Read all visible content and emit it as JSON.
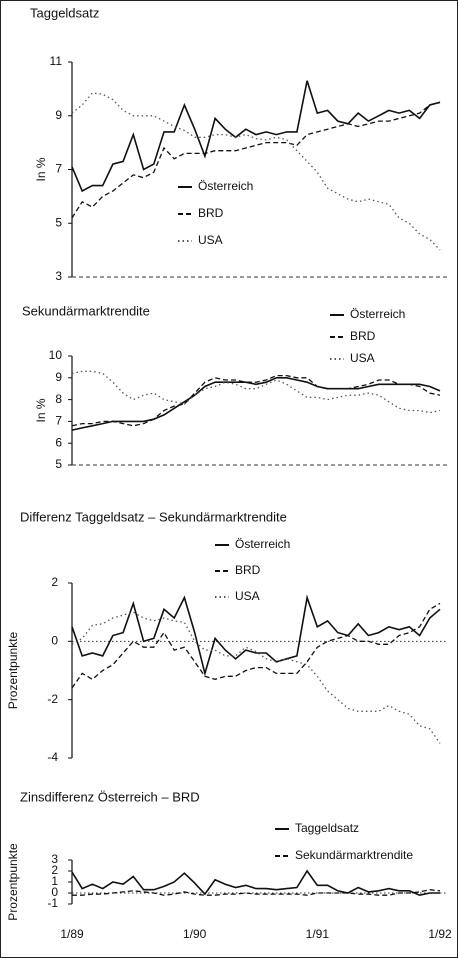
{
  "chart_data": [
    {
      "type": "line",
      "title": "Taggeldsatz",
      "ylabel": "In %",
      "ylim": [
        3,
        11
      ],
      "yticks": [
        3,
        5,
        7,
        9,
        11
      ],
      "series": [
        {
          "name": "Österreich",
          "color": "#111111",
          "style": "solid",
          "values": [
            7.1,
            6.2,
            6.4,
            6.4,
            7.2,
            7.3,
            8.3,
            7.0,
            7.2,
            8.4,
            8.4,
            9.4,
            8.5,
            7.5,
            8.9,
            8.5,
            8.2,
            8.5,
            8.3,
            8.4,
            8.3,
            8.4,
            8.4,
            10.3,
            9.1,
            9.2,
            8.8,
            8.7,
            9.1,
            8.8,
            9.0,
            9.2,
            9.1,
            9.2,
            8.9,
            9.4,
            9.5
          ]
        },
        {
          "name": "BRD",
          "color": "#111111",
          "style": "dashed",
          "values": [
            5.2,
            5.8,
            5.6,
            6.0,
            6.2,
            6.5,
            6.8,
            6.7,
            6.9,
            7.8,
            7.4,
            7.6,
            7.6,
            7.6,
            7.7,
            7.7,
            7.7,
            7.8,
            7.9,
            8.0,
            8.0,
            8.0,
            7.9,
            8.3,
            8.4,
            8.5,
            8.6,
            8.7,
            8.6,
            8.7,
            8.8,
            8.8,
            8.9,
            9.0,
            9.1,
            9.4,
            9.5
          ]
        },
        {
          "name": "USA",
          "color": "#555555",
          "style": "dotted",
          "values": [
            9.1,
            9.4,
            9.85,
            9.8,
            9.6,
            9.2,
            9.0,
            9.0,
            9.0,
            8.8,
            8.6,
            8.45,
            8.2,
            8.2,
            8.3,
            8.3,
            8.2,
            8.3,
            8.15,
            8.1,
            8.2,
            8.1,
            7.7,
            7.3,
            6.9,
            6.3,
            6.1,
            5.9,
            5.8,
            5.9,
            5.8,
            5.7,
            5.2,
            5.0,
            4.6,
            4.4,
            4.0
          ]
        }
      ]
    },
    {
      "type": "line",
      "title": "Sekundärmarktrendite",
      "ylabel": "In %",
      "ylim": [
        5,
        10
      ],
      "yticks": [
        5,
        6,
        7,
        8,
        9,
        10
      ],
      "series": [
        {
          "name": "Österreich",
          "color": "#111111",
          "style": "solid",
          "values": [
            6.6,
            6.7,
            6.8,
            6.9,
            7.0,
            7.0,
            7.0,
            7.0,
            7.1,
            7.3,
            7.6,
            7.9,
            8.2,
            8.6,
            8.8,
            8.8,
            8.8,
            8.8,
            8.7,
            8.8,
            9.0,
            9.0,
            8.9,
            8.8,
            8.6,
            8.5,
            8.5,
            8.5,
            8.5,
            8.6,
            8.7,
            8.7,
            8.7,
            8.7,
            8.7,
            8.6,
            8.4
          ]
        },
        {
          "name": "BRD",
          "color": "#111111",
          "style": "dashed",
          "values": [
            6.8,
            6.9,
            6.9,
            7.0,
            7.0,
            6.9,
            6.8,
            6.9,
            7.1,
            7.5,
            7.7,
            7.8,
            8.3,
            8.8,
            9.0,
            8.9,
            8.9,
            8.8,
            8.8,
            8.9,
            9.1,
            9.1,
            9.0,
            9.0,
            8.6,
            8.5,
            8.5,
            8.5,
            8.6,
            8.7,
            8.9,
            8.9,
            8.7,
            8.7,
            8.6,
            8.3,
            8.2
          ]
        },
        {
          "name": "USA",
          "color": "#555555",
          "style": "dotted",
          "values": [
            9.2,
            9.3,
            9.3,
            9.2,
            8.8,
            8.3,
            8.0,
            8.2,
            8.3,
            8.0,
            7.9,
            7.8,
            8.2,
            8.5,
            8.6,
            8.8,
            8.7,
            8.5,
            8.5,
            8.7,
            8.9,
            8.7,
            8.4,
            8.1,
            8.1,
            8.0,
            8.1,
            8.2,
            8.2,
            8.3,
            8.2,
            7.9,
            7.6,
            7.5,
            7.5,
            7.4,
            7.5
          ]
        }
      ]
    },
    {
      "type": "line",
      "title": "Differenz Taggeldsatz – Sekundärmarktrendite",
      "ylabel": "Prozentpunkte",
      "ylim": [
        -4,
        2
      ],
      "yticks": [
        -4,
        -2,
        0,
        2
      ],
      "series": [
        {
          "name": "Österreich",
          "color": "#111111",
          "style": "solid",
          "values": [
            0.5,
            -0.5,
            -0.4,
            -0.5,
            0.2,
            0.3,
            1.3,
            0.0,
            0.1,
            1.1,
            0.8,
            1.5,
            0.3,
            -1.1,
            0.1,
            -0.3,
            -0.6,
            -0.3,
            -0.4,
            -0.4,
            -0.7,
            -0.6,
            -0.5,
            1.5,
            0.5,
            0.7,
            0.3,
            0.2,
            0.6,
            0.2,
            0.3,
            0.5,
            0.4,
            0.5,
            0.2,
            0.8,
            1.1
          ]
        },
        {
          "name": "BRD",
          "color": "#111111",
          "style": "dashed",
          "values": [
            -1.6,
            -1.1,
            -1.3,
            -1.0,
            -0.8,
            -0.4,
            0.0,
            -0.2,
            -0.2,
            0.3,
            -0.3,
            -0.2,
            -0.7,
            -1.2,
            -1.3,
            -1.2,
            -1.2,
            -1.0,
            -0.9,
            -0.9,
            -1.1,
            -1.1,
            -1.1,
            -0.7,
            -0.2,
            0.0,
            0.1,
            0.2,
            0.0,
            0.0,
            -0.1,
            -0.1,
            0.2,
            0.3,
            0.5,
            1.1,
            1.3
          ]
        },
        {
          "name": "USA",
          "color": "#555555",
          "style": "dotted",
          "values": [
            -0.1,
            0.1,
            0.55,
            0.6,
            0.8,
            0.9,
            1.0,
            0.8,
            0.7,
            0.8,
            0.7,
            0.65,
            0.0,
            -0.3,
            -0.3,
            -0.5,
            -0.5,
            -0.2,
            -0.35,
            -0.6,
            -0.7,
            -0.6,
            -0.7,
            -0.8,
            -1.2,
            -1.7,
            -2.0,
            -2.3,
            -2.4,
            -2.4,
            -2.4,
            -2.2,
            -2.4,
            -2.5,
            -2.9,
            -3.0,
            -3.5
          ]
        }
      ]
    },
    {
      "type": "line",
      "title": "Zinsdifferenz Österreich – BRD",
      "ylabel": "Prozentpunkte",
      "ylim": [
        -1,
        3
      ],
      "yticks": [
        -1,
        0,
        1,
        2,
        3
      ],
      "categories": [
        "1/89",
        null,
        null,
        null,
        null,
        null,
        null,
        null,
        null,
        null,
        null,
        null,
        "1/90",
        null,
        null,
        null,
        null,
        null,
        null,
        null,
        null,
        null,
        null,
        null,
        "1/91",
        null,
        null,
        null,
        null,
        null,
        null,
        null,
        null,
        null,
        null,
        null,
        "1/92"
      ],
      "series": [
        {
          "name": "Taggeldsatz",
          "color": "#111111",
          "style": "solid",
          "values": [
            1.9,
            0.4,
            0.8,
            0.4,
            1.0,
            0.8,
            1.5,
            0.3,
            0.3,
            0.6,
            1.0,
            1.8,
            0.9,
            -0.1,
            1.2,
            0.8,
            0.5,
            0.7,
            0.4,
            0.4,
            0.3,
            0.4,
            0.5,
            2.0,
            0.7,
            0.7,
            0.2,
            0.0,
            0.5,
            0.1,
            0.2,
            0.4,
            0.2,
            0.2,
            -0.2,
            0.0,
            0.0
          ]
        },
        {
          "name": "Sekundärmarktrendite",
          "color": "#111111",
          "style": "dashed",
          "values": [
            -0.2,
            -0.2,
            -0.1,
            -0.1,
            0.0,
            0.1,
            0.2,
            0.1,
            0.0,
            -0.2,
            -0.1,
            0.1,
            -0.1,
            -0.2,
            -0.2,
            -0.1,
            -0.1,
            0.0,
            -0.1,
            -0.1,
            -0.1,
            -0.1,
            -0.1,
            -0.2,
            0.0,
            0.0,
            0.0,
            0.0,
            -0.1,
            -0.1,
            -0.2,
            -0.2,
            0.0,
            0.0,
            0.1,
            0.3,
            0.2
          ]
        }
      ]
    }
  ]
}
